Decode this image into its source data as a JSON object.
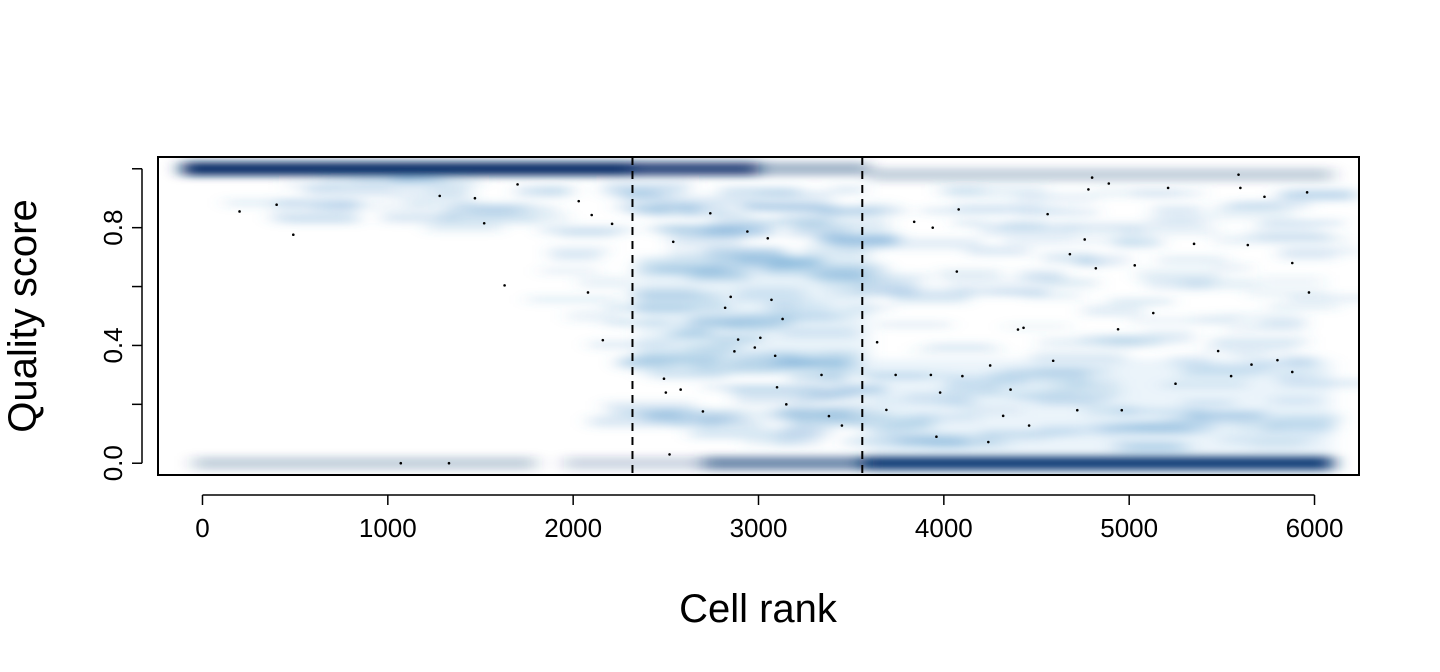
{
  "chart_data": {
    "type": "scatter",
    "plot_style": "smoothed density scatter (smoothScatter) with outlier points",
    "colors": {
      "density_high": "#08306b",
      "density_low": "#deebf7",
      "background": "#ffffff",
      "points": "#000000",
      "reference_lines": "#000000"
    },
    "xlabel": "Cell rank",
    "ylabel": "Quality score",
    "xlim": [
      -240,
      6240
    ],
    "ylim": [
      -0.04,
      1.04
    ],
    "x_ticks": [
      0,
      1000,
      2000,
      3000,
      4000,
      5000,
      6000
    ],
    "x_tick_labels": [
      "0",
      "1000",
      "2000",
      "3000",
      "4000",
      "5000",
      "6000"
    ],
    "y_ticks": [
      0.0,
      0.2,
      0.4,
      0.6,
      0.8,
      1.0
    ],
    "y_tick_labels": [
      "0.0",
      "",
      "0.4",
      "",
      "0.8",
      ""
    ],
    "grid": false,
    "legend": "none",
    "vertical_reference_lines": [
      2320,
      3560
    ],
    "density_bands": [
      {
        "x0": -110,
        "x1": 2320,
        "y": 1.0,
        "weight": 1.0
      },
      {
        "x0": 2320,
        "x1": 3000,
        "y": 1.0,
        "weight": 0.85
      },
      {
        "x0": 3000,
        "x1": 3600,
        "y": 1.0,
        "weight": 0.35
      },
      {
        "x0": 3600,
        "x1": 6100,
        "y": 0.98,
        "weight": 0.22
      },
      {
        "x0": 2700,
        "x1": 3560,
        "y": 0.0,
        "weight": 0.55
      },
      {
        "x0": 3560,
        "x1": 6100,
        "y": 0.0,
        "weight": 1.0
      },
      {
        "x0": -50,
        "x1": 1800,
        "y": 0.0,
        "weight": 0.22
      },
      {
        "x0": 1950,
        "x1": 2700,
        "y": 0.0,
        "weight": 0.18
      },
      {
        "x0": 2350,
        "x1": 3600,
        "y": 0.5,
        "weight": 0.25
      },
      {
        "x0": 3600,
        "x1": 6100,
        "y": 0.15,
        "weight": 0.22
      }
    ],
    "outlier_points": [
      {
        "x": 200,
        "y": 0.855
      },
      {
        "x": 400,
        "y": 0.878
      },
      {
        "x": 490,
        "y": 0.776
      },
      {
        "x": 1070,
        "y": 0.0
      },
      {
        "x": 1330,
        "y": 0.0
      },
      {
        "x": 1280,
        "y": 0.908
      },
      {
        "x": 1470,
        "y": 0.9
      },
      {
        "x": 1520,
        "y": 0.815
      },
      {
        "x": 1630,
        "y": 0.604
      },
      {
        "x": 1700,
        "y": 0.947
      },
      {
        "x": 2030,
        "y": 0.89
      },
      {
        "x": 2080,
        "y": 0.58
      },
      {
        "x": 2100,
        "y": 0.843
      },
      {
        "x": 2160,
        "y": 0.418
      },
      {
        "x": 2210,
        "y": 0.813
      },
      {
        "x": 2490,
        "y": 0.287
      },
      {
        "x": 2500,
        "y": 0.24
      },
      {
        "x": 2520,
        "y": 0.03
      },
      {
        "x": 2540,
        "y": 0.752
      },
      {
        "x": 2580,
        "y": 0.25
      },
      {
        "x": 2700,
        "y": 0.176
      },
      {
        "x": 2740,
        "y": 0.849
      },
      {
        "x": 2820,
        "y": 0.528
      },
      {
        "x": 2850,
        "y": 0.565
      },
      {
        "x": 2870,
        "y": 0.38
      },
      {
        "x": 2890,
        "y": 0.42
      },
      {
        "x": 2940,
        "y": 0.787
      },
      {
        "x": 2980,
        "y": 0.393
      },
      {
        "x": 3010,
        "y": 0.426
      },
      {
        "x": 3050,
        "y": 0.764
      },
      {
        "x": 3070,
        "y": 0.555
      },
      {
        "x": 3090,
        "y": 0.365
      },
      {
        "x": 3100,
        "y": 0.258
      },
      {
        "x": 3130,
        "y": 0.49
      },
      {
        "x": 3150,
        "y": 0.2
      },
      {
        "x": 3340,
        "y": 0.3
      },
      {
        "x": 3380,
        "y": 0.16
      },
      {
        "x": 3450,
        "y": 0.128
      },
      {
        "x": 3640,
        "y": 0.411
      },
      {
        "x": 3690,
        "y": 0.181
      },
      {
        "x": 3740,
        "y": 0.3
      },
      {
        "x": 3840,
        "y": 0.82
      },
      {
        "x": 3930,
        "y": 0.3
      },
      {
        "x": 3940,
        "y": 0.8
      },
      {
        "x": 3960,
        "y": 0.09
      },
      {
        "x": 3980,
        "y": 0.24
      },
      {
        "x": 4070,
        "y": 0.651
      },
      {
        "x": 4080,
        "y": 0.862
      },
      {
        "x": 4100,
        "y": 0.296
      },
      {
        "x": 4240,
        "y": 0.072
      },
      {
        "x": 4250,
        "y": 0.332
      },
      {
        "x": 4320,
        "y": 0.161
      },
      {
        "x": 4360,
        "y": 0.25
      },
      {
        "x": 4400,
        "y": 0.454
      },
      {
        "x": 4430,
        "y": 0.46
      },
      {
        "x": 4460,
        "y": 0.128
      },
      {
        "x": 4560,
        "y": 0.846
      },
      {
        "x": 4590,
        "y": 0.348
      },
      {
        "x": 4680,
        "y": 0.71
      },
      {
        "x": 4720,
        "y": 0.18
      },
      {
        "x": 4760,
        "y": 0.76
      },
      {
        "x": 4780,
        "y": 0.93
      },
      {
        "x": 4800,
        "y": 0.97
      },
      {
        "x": 4820,
        "y": 0.662
      },
      {
        "x": 4890,
        "y": 0.95
      },
      {
        "x": 4940,
        "y": 0.455
      },
      {
        "x": 4960,
        "y": 0.18
      },
      {
        "x": 5030,
        "y": 0.672
      },
      {
        "x": 5130,
        "y": 0.51
      },
      {
        "x": 5210,
        "y": 0.935
      },
      {
        "x": 5250,
        "y": 0.27
      },
      {
        "x": 5350,
        "y": 0.745
      },
      {
        "x": 5480,
        "y": 0.381
      },
      {
        "x": 5550,
        "y": 0.296
      },
      {
        "x": 5590,
        "y": 0.98
      },
      {
        "x": 5600,
        "y": 0.935
      },
      {
        "x": 5640,
        "y": 0.741
      },
      {
        "x": 5660,
        "y": 0.335
      },
      {
        "x": 5730,
        "y": 0.905
      },
      {
        "x": 5800,
        "y": 0.35
      },
      {
        "x": 5880,
        "y": 0.68
      },
      {
        "x": 5880,
        "y": 0.31
      },
      {
        "x": 5960,
        "y": 0.92
      },
      {
        "x": 5970,
        "y": 0.58
      }
    ]
  }
}
